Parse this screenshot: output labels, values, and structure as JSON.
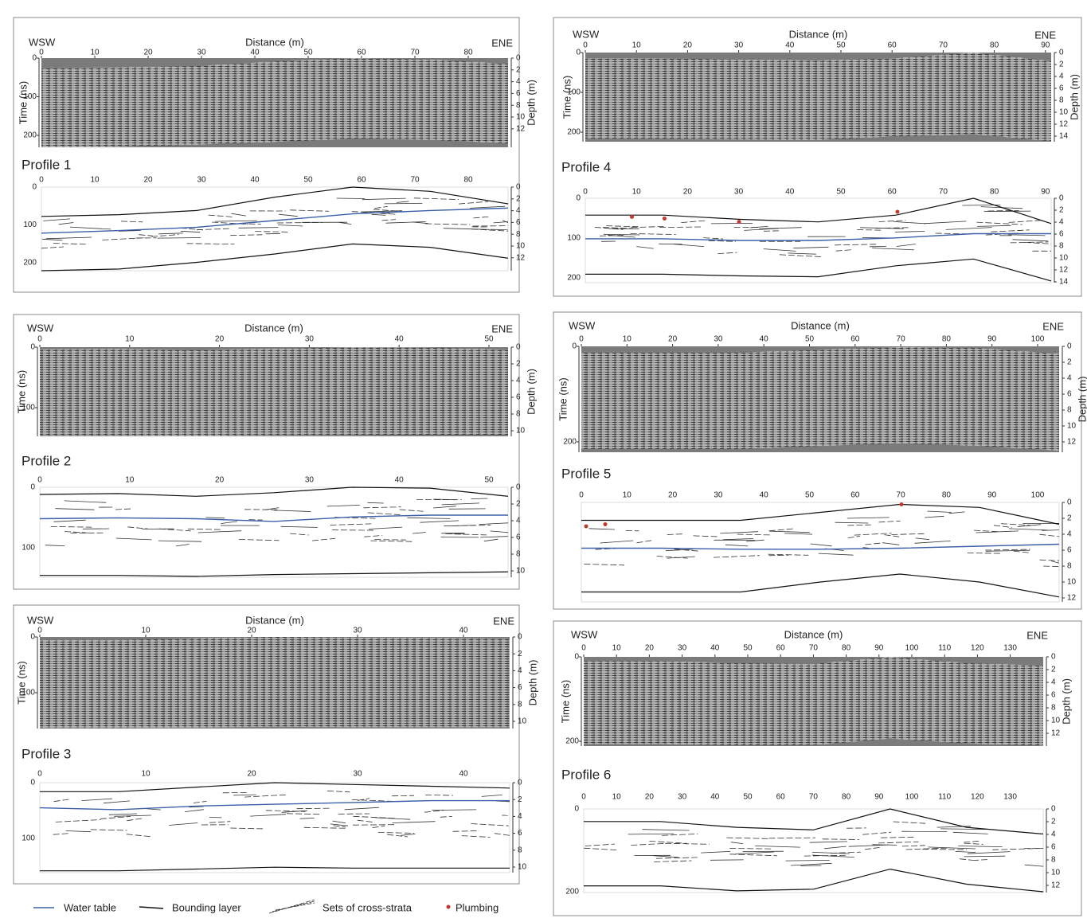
{
  "panels": [
    {
      "left_label": "WSW",
      "right_label": "ENE",
      "x_axis_title": "Distance (m)",
      "time_axis_title": "Time (ns)",
      "depth_axis_title": "Depth (m)",
      "title": "Profile 1",
      "distance_ticks": [
        0,
        10,
        20,
        30,
        40,
        50,
        60,
        70,
        80
      ],
      "time_ticks": [
        0,
        100,
        200
      ],
      "depth_ticks": [
        0,
        2,
        4,
        6,
        8,
        10,
        12
      ]
    },
    {
      "left_label": "WSW",
      "right_label": "ENE",
      "x_axis_title": "Distance (m)",
      "time_axis_title": "Time (ns)",
      "depth_axis_title": "Depth (m)",
      "title": "Profile 2",
      "distance_ticks": [
        0,
        10,
        20,
        30,
        40,
        50
      ],
      "time_ticks": [
        0,
        100
      ],
      "depth_ticks": [
        0,
        2,
        4,
        6,
        8,
        10
      ]
    },
    {
      "left_label": "WSW",
      "right_label": "ENE",
      "x_axis_title": "Distance (m)",
      "time_axis_title": "Time (ns)",
      "depth_axis_title": "Depth (m)",
      "title": "Profile 3",
      "distance_ticks": [
        0,
        10,
        20,
        30,
        40
      ],
      "time_ticks": [
        0,
        100
      ],
      "depth_ticks": [
        0,
        2,
        4,
        6,
        8,
        10
      ]
    },
    {
      "left_label": "WSW",
      "right_label": "ENE",
      "x_axis_title": "Distance (m)",
      "time_axis_title": "Time (ns)",
      "depth_axis_title": "Depth (m)",
      "title": "Profile 4",
      "distance_ticks": [
        0,
        10,
        20,
        30,
        40,
        50,
        60,
        70,
        80,
        90
      ],
      "time_ticks": [
        0,
        100,
        200
      ],
      "depth_ticks": [
        0,
        2,
        4,
        6,
        8,
        10,
        12,
        14
      ]
    },
    {
      "left_label": "WSW",
      "right_label": "ENE",
      "x_axis_title": "Distance (m)",
      "time_axis_title": "Time (ns)",
      "depth_axis_title": "Depth (m)",
      "title": "Profile 5",
      "distance_ticks": [
        0,
        10,
        20,
        30,
        40,
        50,
        60,
        70,
        80,
        90,
        100
      ],
      "time_ticks": [
        0,
        200
      ],
      "depth_ticks": [
        0,
        2,
        4,
        6,
        8,
        10,
        12
      ]
    },
    {
      "left_label": "WSW",
      "right_label": "ENE",
      "x_axis_title": "Distance (m)",
      "time_axis_title": "Time (ns)",
      "depth_axis_title": "Depth (m)",
      "title": "Profile 6",
      "distance_ticks": [
        0,
        10,
        20,
        30,
        40,
        50,
        60,
        70,
        80,
        90,
        100,
        110,
        120,
        130
      ],
      "time_ticks": [
        0,
        200
      ],
      "depth_ticks": [
        0,
        2,
        4,
        6,
        8,
        10,
        12
      ]
    }
  ],
  "legend": [
    {
      "label": "Water table"
    },
    {
      "label": "Bounding layer"
    },
    {
      "label": "Sets of cross-strata"
    },
    {
      "label": "Plumbing"
    }
  ]
}
